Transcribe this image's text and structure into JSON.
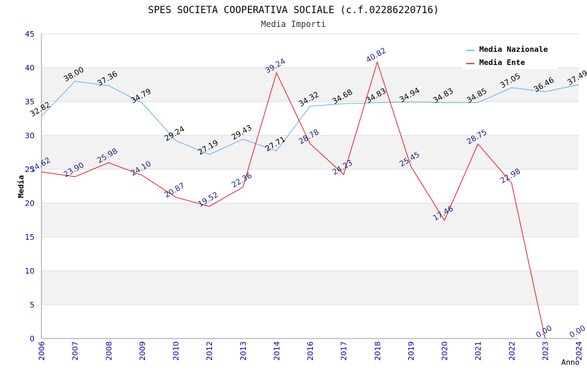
{
  "chart_data": {
    "type": "line",
    "title": "SPES SOCIETA COOPERATIVA SOCIALE (c.f.02286220716)",
    "subtitle": "Media Importi",
    "xlabel": "Anno",
    "ylabel": "Media",
    "ylim": [
      0,
      45
    ],
    "yticks": [
      "0",
      "5",
      "10",
      "15",
      "20",
      "25",
      "30",
      "35",
      "40",
      "45"
    ],
    "categories": [
      "2006",
      "2007",
      "2008",
      "2009",
      "2010",
      "2012",
      "2013",
      "2014",
      "2016",
      "2017",
      "2018",
      "2019",
      "2020",
      "2021",
      "2022",
      "2023",
      "2024"
    ],
    "series": [
      {
        "name": "Media Nazionale",
        "color": "#6aaee6",
        "label_color": "#000000",
        "values": [
          32.82,
          38.0,
          37.36,
          34.79,
          29.24,
          27.19,
          29.43,
          27.71,
          34.32,
          34.68,
          34.83,
          34.94,
          34.83,
          34.85,
          37.05,
          36.46,
          37.49
        ],
        "labels": [
          "32.82",
          "38.00",
          "37.36",
          "34.79",
          "29.24",
          "27.19",
          "29.43",
          "27.71",
          "34.32",
          "34.68",
          "34.83",
          "34.94",
          "34.83",
          "34.85",
          "37.05",
          "36.46",
          "37.49"
        ]
      },
      {
        "name": "Media Ente",
        "color": "#e8141c",
        "label_color": "#1a237e",
        "values": [
          24.62,
          23.9,
          25.98,
          24.1,
          20.87,
          19.52,
          22.36,
          39.24,
          28.78,
          24.23,
          40.82,
          25.45,
          17.46,
          28.75,
          22.98,
          0.0,
          0.0
        ],
        "labels": [
          "24.62",
          "23.90",
          "25.98",
          "24.10",
          "20.87",
          "19.52",
          "22.36",
          "39.24",
          "28.78",
          "24.23",
          "40.82",
          "25.45",
          "17.46",
          "28.75",
          "22.98",
          "0.00",
          "0.00"
        ],
        "line_points": 16
      }
    ],
    "legend": "top-right",
    "grid": "horizontal bands"
  },
  "colors": {
    "axis_text": "#0000aa",
    "band": "#f2f2f2",
    "grid": "#dddddd"
  }
}
